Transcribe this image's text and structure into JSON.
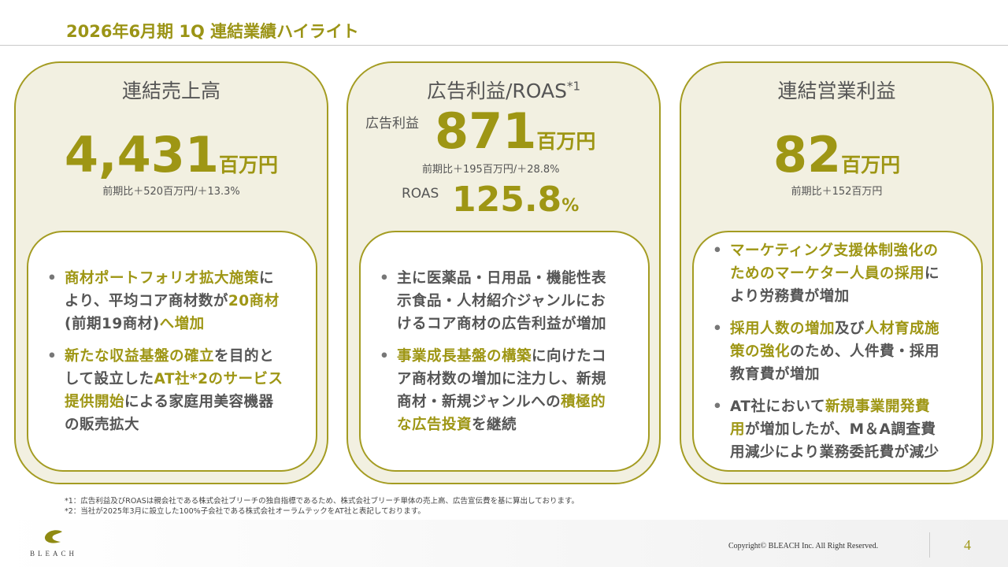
{
  "header": {
    "title": "2026年6月期 1Q 連結業績ハイライト"
  },
  "colors": {
    "accent": "#9e9614",
    "card_bg": "#f2f0e1",
    "border": "#a49c22"
  },
  "cards": [
    {
      "heading": "連結売上高",
      "value": "4,431",
      "unit": "百万円",
      "comparison": "前期比＋520百万円/＋13.3%",
      "bullets": [
        [
          [
            {
              "t": "商材ポートフォリオ拡大施策",
              "hl": true
            },
            {
              "t": "に"
            }
          ],
          [
            {
              "t": "より、平均コア商材数が"
            },
            {
              "t": "20商材",
              "hl": true
            }
          ],
          [
            {
              "t": "(前期19商材)"
            },
            {
              "t": "へ増加",
              "hl": true
            }
          ]
        ],
        [
          [
            {
              "t": "新たな収益基盤の確立",
              "hl": true
            },
            {
              "t": "を目的と"
            }
          ],
          [
            {
              "t": "して設立した"
            },
            {
              "t": "AT社*2のサービス",
              "hl": true
            }
          ],
          [
            {
              "t": "提供開始",
              "hl": true
            },
            {
              "t": "による家庭用美容機器"
            }
          ],
          [
            {
              "t": "の販売拡大"
            }
          ]
        ]
      ]
    },
    {
      "heading": "広告利益/ROAS",
      "heading_sup": "*1",
      "label1": "広告利益",
      "value": "871",
      "unit": "百万円",
      "comparison": "前期比＋195百万円/＋28.8%",
      "label2": "ROAS",
      "value2": "125.8",
      "unit2": "%",
      "bullets": [
        [
          [
            {
              "t": "主に医薬品・日用品・機能性表"
            }
          ],
          [
            {
              "t": "示食品・人材紹介ジャンルにお"
            }
          ],
          [
            {
              "t": "けるコア商材の広告利益が増加"
            }
          ]
        ],
        [
          [
            {
              "t": "事業成長基盤の構築",
              "hl": true
            },
            {
              "t": "に向けたコ"
            }
          ],
          [
            {
              "t": "ア商材数の増加に注力し、新規"
            }
          ],
          [
            {
              "t": "商材・新規ジャンルへの"
            },
            {
              "t": "積極的",
              "hl": true
            }
          ],
          [
            {
              "t": "な広告投資",
              "hl": true
            },
            {
              "t": "を継続"
            }
          ]
        ]
      ]
    },
    {
      "heading": "連結営業利益",
      "value": "82",
      "unit": "百万円",
      "comparison": "前期比＋152百万円",
      "bullets": [
        [
          [
            {
              "t": "マーケティング支援体制強化の",
              "hl": true
            }
          ],
          [
            {
              "t": "ためのマーケター人員の採用",
              "hl": true
            },
            {
              "t": "に"
            }
          ],
          [
            {
              "t": "より労務費が増加"
            }
          ]
        ],
        [
          [
            {
              "t": "採用人数の増加",
              "hl": true
            },
            {
              "t": "及び"
            },
            {
              "t": "人材育成施",
              "hl": true
            }
          ],
          [
            {
              "t": "策の強化",
              "hl": true
            },
            {
              "t": "のため、人件費・採用"
            }
          ],
          [
            {
              "t": "教育費が増加"
            }
          ]
        ],
        [
          [
            {
              "t": "AT社において"
            },
            {
              "t": "新規事業開発費",
              "hl": true
            }
          ],
          [
            {
              "t": "用",
              "hl": true
            },
            {
              "t": "が増加したが、M＆A調査費"
            }
          ],
          [
            {
              "t": "用減少により業務委託費が減少"
            }
          ]
        ]
      ]
    }
  ],
  "footnotes": [
    "*1：広告利益及びROASは親会社である株式会社ブリーチの独自指標であるため、株式会社ブリーチ単体の売上高、広告宣伝費を基に算出しております。",
    "*2：当社が2025年3月に設立した100%子会社である株式会社オーラムテックをAT社と表記しております。"
  ],
  "footer": {
    "logo_text": "BLEACH",
    "copyright": "Copyright© BLEACH Inc. All Right Reserved.",
    "page": "4"
  }
}
